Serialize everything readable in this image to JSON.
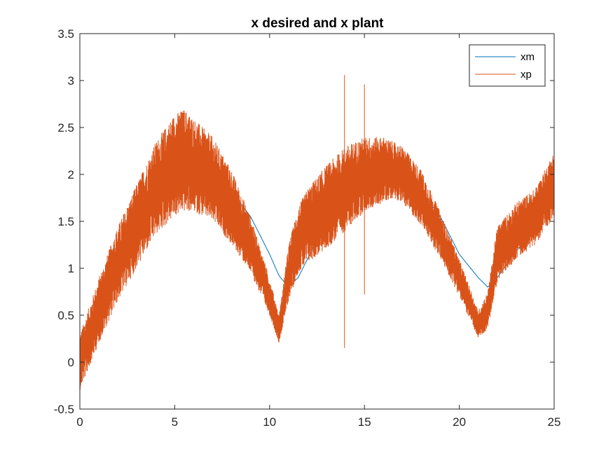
{
  "chart_data": {
    "type": "line",
    "title": "x desired and x plant",
    "xlabel": "",
    "ylabel": "",
    "xlim": [
      0,
      25
    ],
    "ylim": [
      -0.5,
      3.5
    ],
    "xticks": [
      0,
      5,
      10,
      15,
      20,
      25
    ],
    "xtick_labels": [
      "0",
      "5",
      "10",
      "15",
      "20",
      "25"
    ],
    "yticks": [
      -0.5,
      0,
      0.5,
      1,
      1.5,
      2,
      2.5,
      3,
      3.5
    ],
    "ytick_labels": [
      "-0.5",
      "0",
      "0.5",
      "1",
      "1.5",
      "2",
      "2.5",
      "3",
      "3.5"
    ],
    "grid": false,
    "legend_position": "top-right",
    "series": [
      {
        "name": "xm",
        "color": "#0072BD",
        "x": [
          0,
          1,
          2,
          3,
          4,
          5,
          5.5,
          6,
          7,
          8,
          9,
          10,
          10.5,
          11,
          11.5,
          12,
          13,
          14,
          15,
          16,
          16.5,
          17,
          18,
          19,
          20,
          21,
          21.5,
          22,
          23,
          24,
          25
        ],
        "y": [
          0,
          0.55,
          1.05,
          1.45,
          1.78,
          1.98,
          2.02,
          2.02,
          1.98,
          1.82,
          1.55,
          1.15,
          0.92,
          0.8,
          0.9,
          1.1,
          1.5,
          1.82,
          1.98,
          2.02,
          2.02,
          1.98,
          1.82,
          1.55,
          1.15,
          0.9,
          0.8,
          0.9,
          1.18,
          1.45,
          1.78
        ]
      },
      {
        "name": "xp",
        "color": "#D95319",
        "x": [
          0,
          1,
          2,
          3,
          4,
          5,
          5.5,
          6,
          7,
          8,
          9,
          10,
          10.5,
          11,
          11.5,
          12,
          13,
          14,
          15,
          16,
          16.5,
          17,
          18,
          19,
          20,
          21,
          21.5,
          22,
          23,
          24,
          25
        ],
        "y": [
          0,
          0.55,
          1.05,
          1.45,
          1.85,
          2.1,
          2.15,
          2.1,
          1.95,
          1.65,
          1.25,
          0.7,
          0.35,
          0.95,
          1.3,
          1.45,
          1.65,
          1.85,
          2.0,
          2.05,
          2.05,
          2.0,
          1.75,
          1.35,
          0.9,
          0.4,
          0.55,
          1.15,
          1.4,
          1.55,
          1.9
        ],
        "noise_amplitude": [
          0.3,
          0.35,
          0.4,
          0.45,
          0.5,
          0.55,
          0.55,
          0.5,
          0.45,
          0.4,
          0.3,
          0.2,
          0.15,
          0.3,
          0.35,
          0.4,
          0.45,
          0.45,
          0.4,
          0.35,
          0.3,
          0.3,
          0.3,
          0.25,
          0.2,
          0.15,
          0.2,
          0.3,
          0.3,
          0.3,
          0.35
        ],
        "spikes": [
          {
            "x": 13.95,
            "min": 0.15,
            "max": 3.06
          },
          {
            "x": 15.0,
            "min": 0.72,
            "max": 2.96
          }
        ]
      }
    ]
  }
}
